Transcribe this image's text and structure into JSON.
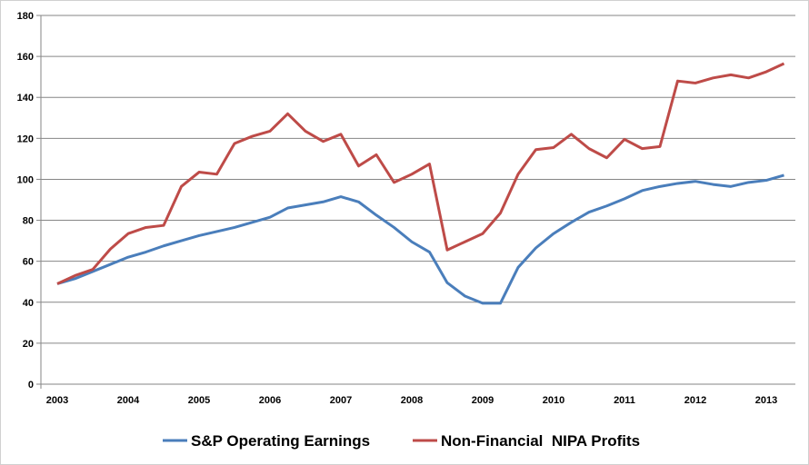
{
  "chart_data": {
    "type": "line",
    "title": "",
    "xlabel": "",
    "ylabel": "",
    "ylim": [
      0,
      180
    ],
    "yticks": [
      "0",
      "20",
      "40",
      "60",
      "80",
      "100",
      "120",
      "140",
      "160",
      "180"
    ],
    "xticks": [
      "2003",
      "2004",
      "2005",
      "2006",
      "2007",
      "2008",
      "2009",
      "2010",
      "2011",
      "2012",
      "2013"
    ],
    "x_frequency": "quarterly, starting 2003",
    "grid": true,
    "legend_position": "bottom",
    "series": [
      {
        "name": "S&P Operating Earnings",
        "color": "#4a7ebb",
        "values": [
          49,
          51.5,
          55,
          58.5,
          62,
          64.5,
          67.5,
          70,
          72.5,
          74.5,
          76.5,
          79,
          81.5,
          86,
          87.5,
          89,
          91.5,
          89,
          82.5,
          76.5,
          69.5,
          64.5,
          49.5,
          43,
          39.5,
          39.5,
          57,
          66.5,
          73.5,
          79,
          84,
          87,
          90.5,
          94.5,
          96.5,
          98,
          99,
          97.5,
          96.5,
          98.5,
          99.5,
          102
        ]
      },
      {
        "name": "Non-Financial  NIPA Profits",
        "color": "#be4b48",
        "values": [
          49,
          53,
          56,
          66,
          73.5,
          76.5,
          77.5,
          96.5,
          103.5,
          102.5,
          117.5,
          121,
          123.5,
          132,
          123.5,
          118.5,
          122,
          106.5,
          112,
          98.5,
          102.5,
          107.5,
          65.5,
          69.5,
          73.5,
          83.5,
          102.5,
          114.5,
          115.5,
          122,
          115,
          110.5,
          119.5,
          115,
          116,
          148,
          147,
          149.5,
          151,
          149.5,
          152.5,
          156.5
        ]
      }
    ]
  }
}
